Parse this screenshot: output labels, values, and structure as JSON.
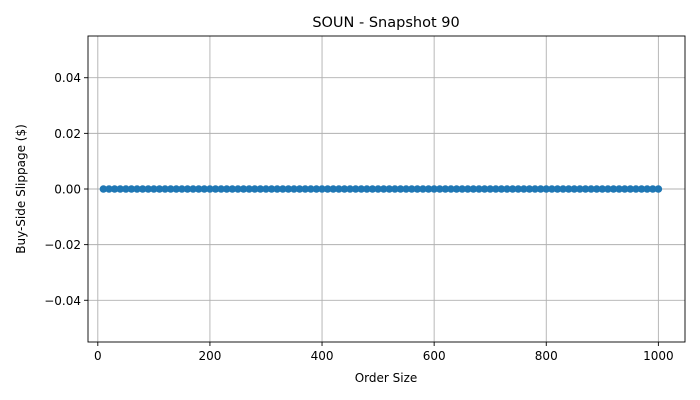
{
  "chart_data": {
    "type": "line",
    "title": "SOUN - Snapshot 90",
    "xlabel": "Order Size",
    "ylabel": "Buy-Side Slippage ($)",
    "xlim": [
      -17.5,
      1047.5
    ],
    "ylim": [
      -0.055,
      0.055
    ],
    "x_ticks": [
      0,
      200,
      400,
      600,
      800,
      1000
    ],
    "x_tick_labels": [
      "0",
      "200",
      "400",
      "600",
      "800",
      "1000"
    ],
    "y_ticks": [
      -0.04,
      -0.02,
      0.0,
      0.02,
      0.04
    ],
    "y_tick_labels": [
      "−0.04",
      "−0.02",
      "0.00",
      "0.02",
      "0.04"
    ],
    "grid": true,
    "marker": "circle",
    "series": [
      {
        "color": "#1f77b4",
        "x_start": 10,
        "x_end": 1000,
        "x_step": 10,
        "y_constant": 0.0
      }
    ]
  }
}
